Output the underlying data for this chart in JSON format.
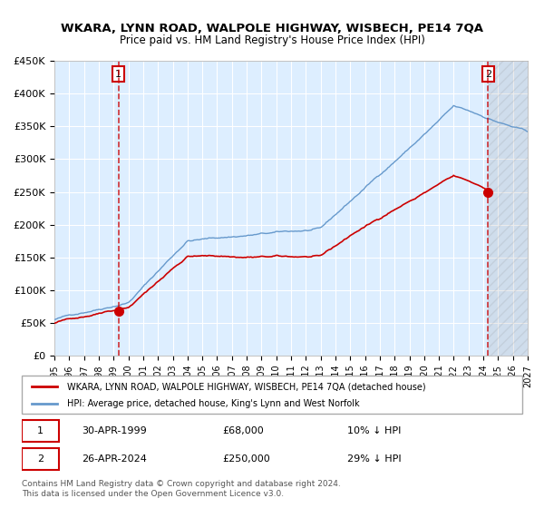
{
  "title": "WKARA, LYNN ROAD, WALPOLE HIGHWAY, WISBECH, PE14 7QA",
  "subtitle": "Price paid vs. HM Land Registry's House Price Index (HPI)",
  "legend_line1": "WKARA, LYNN ROAD, WALPOLE HIGHWAY, WISBECH, PE14 7QA (detached house)",
  "legend_line2": "HPI: Average price, detached house, King's Lynn and West Norfolk",
  "annotation1_date": "30-APR-1999",
  "annotation1_price": "£68,000",
  "annotation1_hpi": "10% ↓ HPI",
  "annotation2_date": "26-APR-2024",
  "annotation2_price": "£250,000",
  "annotation2_hpi": "29% ↓ HPI",
  "footer": "Contains HM Land Registry data © Crown copyright and database right 2024.\nThis data is licensed under the Open Government Licence v3.0.",
  "red_color": "#cc0000",
  "blue_color": "#6699cc",
  "bg_color": "#ddeeff",
  "hatch_color": "#bbbbcc",
  "grid_color": "#ffffff",
  "sale1_x": 1999.33,
  "sale1_y": 68000,
  "sale2_x": 2024.33,
  "sale2_y": 250000,
  "xmin": 1995.0,
  "xmax": 2027.0,
  "ymin": 0,
  "ymax": 450000,
  "yticks": [
    0,
    50000,
    100000,
    150000,
    200000,
    250000,
    300000,
    350000,
    400000,
    450000
  ],
  "ytick_labels": [
    "£0",
    "£50K",
    "£100K",
    "£150K",
    "£200K",
    "£250K",
    "£300K",
    "£350K",
    "£400K",
    "£450K"
  ]
}
